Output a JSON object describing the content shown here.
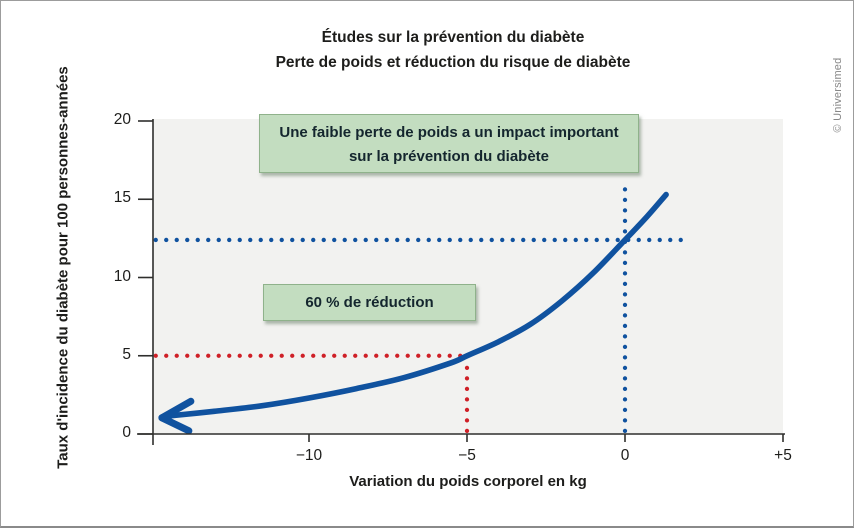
{
  "figure": {
    "title_line1": "Études sur la prévention du diabète",
    "title_line2": "Perte de poids et réduction du risque de diabète",
    "credit": "© Universimed"
  },
  "annotations": {
    "box1_line1": "Une faible perte de poids a un impact important",
    "box1_line2": "sur la prévention du diabète",
    "box2": "60 % de réduction"
  },
  "chart_data": {
    "type": "line",
    "title": "Études sur la prévention du diabète",
    "subtitle": "Perte de poids et réduction du risque de diabète",
    "xlabel": "Variation du poids corporel en kg",
    "ylabel": "Taux d'incidence du diabète pour 100 personnes-années",
    "xlim": [
      -15,
      5
    ],
    "ylim": [
      0,
      20
    ],
    "grid": false,
    "legend": "none",
    "x_ticks": [
      {
        "value": -10,
        "label": "−10"
      },
      {
        "value": -5,
        "label": "−5"
      },
      {
        "value": 0,
        "label": "0"
      },
      {
        "value": 5,
        "label": "+5"
      }
    ],
    "y_ticks": [
      {
        "value": 0,
        "label": "0"
      },
      {
        "value": 5,
        "label": "5"
      },
      {
        "value": 10,
        "label": "10"
      },
      {
        "value": 15,
        "label": "15"
      },
      {
        "value": 20,
        "label": "20"
      }
    ],
    "series": [
      {
        "name": "incidence-curve",
        "color": "#10529f",
        "arrow_at_start": true,
        "x": [
          -14.45,
          -13,
          -11.5,
          -10,
          -8.5,
          -7,
          -5.5,
          -5,
          -4,
          -3,
          -2,
          -1,
          0,
          0.7,
          1.3
        ],
        "y": [
          1.15,
          1.45,
          1.8,
          2.3,
          2.9,
          3.6,
          4.55,
          5.0,
          5.9,
          7.0,
          8.5,
          10.3,
          12.4,
          13.9,
          15.3
        ]
      }
    ],
    "reference_lines": [
      {
        "name": "blue-horizontal-dotted",
        "orientation": "horizontal",
        "value": 12.4,
        "from": -14.85,
        "to": 1.78,
        "color": "#10529f",
        "style": "dotted"
      },
      {
        "name": "blue-vertical-dotted",
        "orientation": "vertical",
        "value": 0,
        "from": 0.2,
        "to": 16.25,
        "color": "#10529f",
        "style": "dotted"
      },
      {
        "name": "red-horizontal-dotted",
        "orientation": "horizontal",
        "value": 5,
        "from": -14.85,
        "to": -5.0,
        "color": "#cf2027",
        "style": "dotted"
      },
      {
        "name": "red-vertical-dotted",
        "orientation": "vertical",
        "value": -5,
        "from": 0.2,
        "to": 4.55,
        "color": "#cf2027",
        "style": "dotted"
      }
    ],
    "key_points": [
      {
        "x": -5,
        "y": 5
      },
      {
        "x": 0,
        "y": 12.4
      }
    ]
  },
  "colors": {
    "curve_blue": "#10529f",
    "reference_red": "#cf2027",
    "plot_background": "#f2f2f0",
    "axis": "#2f2f2d",
    "text": "#1d1d1b",
    "note_background": "#c3ddc0",
    "note_border": "#8fb28b",
    "credit_gray": "#878787"
  }
}
